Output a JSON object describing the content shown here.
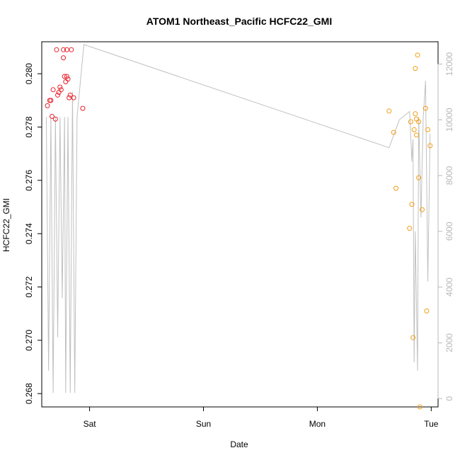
{
  "chart_data": {
    "type": "scatter",
    "title": "ATOM1 Northeast_Pacific HCFC22_GMI",
    "xlabel": "Date",
    "ylabel": "HCFC22_GMI",
    "x_ticks": [
      "Sat",
      "Sun",
      "Mon",
      "Tue"
    ],
    "ylim": [
      0.2675,
      0.2812
    ],
    "y_ticks": [
      "0.268",
      "0.270",
      "0.272",
      "0.274",
      "0.276",
      "0.278",
      "0.280"
    ],
    "y2lim": [
      -300,
      12800
    ],
    "y2_ticks": [
      "0",
      "2000",
      "4000",
      "6000",
      "8000",
      "10000",
      "12000"
    ],
    "xlim_days": [
      -0.42,
      3.06
    ],
    "x_unit_note": "days relative to Sat 00:00",
    "grid": false,
    "colors": {
      "early": "#e8202a",
      "late": "#f39c12",
      "line": "#c0c0c0"
    },
    "series": [
      {
        "points_early": [
          [
            -0.37,
            0.2788
          ],
          [
            -0.35,
            0.279
          ],
          [
            -0.34,
            0.279
          ],
          [
            -0.33,
            0.2784
          ],
          [
            -0.32,
            0.2794
          ],
          [
            -0.3,
            0.2783
          ],
          [
            -0.29,
            0.2809
          ],
          [
            -0.28,
            0.2792
          ],
          [
            -0.27,
            0.2793
          ],
          [
            -0.26,
            0.2795
          ],
          [
            -0.25,
            0.2794
          ],
          [
            -0.23,
            0.2806
          ],
          [
            -0.23,
            0.2809
          ],
          [
            -0.22,
            0.2799
          ],
          [
            -0.21,
            0.2797
          ],
          [
            -0.2,
            0.2799
          ],
          [
            -0.2,
            0.2809
          ],
          [
            -0.19,
            0.2798
          ],
          [
            -0.18,
            0.2791
          ],
          [
            -0.17,
            0.2792
          ],
          [
            -0.16,
            0.2809
          ],
          [
            -0.14,
            0.2791
          ],
          [
            -0.06,
            0.2787
          ]
        ],
        "points_late": [
          [
            2.63,
            0.2786
          ],
          [
            2.67,
            0.2778
          ],
          [
            2.69,
            0.2757
          ],
          [
            2.81,
            0.2742
          ],
          [
            2.82,
            0.2782
          ],
          [
            2.83,
            0.2751
          ],
          [
            2.84,
            0.2701
          ],
          [
            2.85,
            0.2779
          ],
          [
            2.86,
            0.2802
          ],
          [
            2.86,
            0.2785
          ],
          [
            2.87,
            0.2777
          ],
          [
            2.87,
            0.2783
          ],
          [
            2.88,
            0.2807
          ],
          [
            2.89,
            0.2782
          ],
          [
            2.89,
            0.2761
          ],
          [
            2.9,
            0.2675
          ],
          [
            2.92,
            0.2749
          ],
          [
            2.95,
            0.2787
          ],
          [
            2.96,
            0.2711
          ],
          [
            2.97,
            0.2779
          ],
          [
            2.99,
            0.2773
          ]
        ]
      },
      {
        "line_right_axis": [
          [
            -0.38,
            10100
          ],
          [
            -0.36,
            1000
          ],
          [
            -0.34,
            10100
          ],
          [
            -0.32,
            200
          ],
          [
            -0.3,
            10100
          ],
          [
            -0.28,
            2200
          ],
          [
            -0.26,
            10100
          ],
          [
            -0.24,
            3600
          ],
          [
            -0.22,
            10100
          ],
          [
            -0.21,
            200
          ],
          [
            -0.19,
            10100
          ],
          [
            -0.17,
            200
          ],
          [
            -0.15,
            11000
          ],
          [
            -0.13,
            200
          ],
          [
            -0.11,
            10100
          ],
          [
            -0.05,
            12700
          ],
          [
            2.63,
            9000
          ],
          [
            2.72,
            10000
          ],
          [
            2.81,
            10300
          ],
          [
            2.83,
            8500
          ],
          [
            2.84,
            9300
          ],
          [
            2.85,
            1300
          ],
          [
            2.86,
            6000
          ],
          [
            2.88,
            1000
          ],
          [
            2.89,
            10100
          ],
          [
            2.91,
            6500
          ],
          [
            2.93,
            10100
          ],
          [
            2.95,
            11400
          ],
          [
            2.97,
            4200
          ],
          [
            2.99,
            9500
          ]
        ]
      }
    ]
  }
}
